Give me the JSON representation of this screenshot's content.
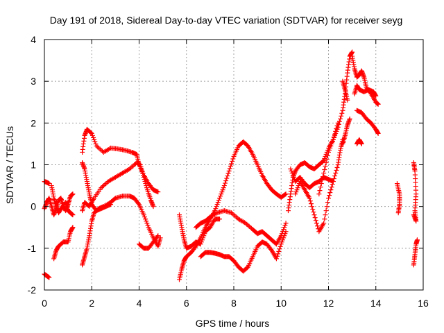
{
  "chart_data": {
    "type": "scatter",
    "title": "Day 191 of 2018, Sidereal Day-to-day VTEC variation (SDTVAR) for receiver seyg",
    "xlabel": "GPS time / hours",
    "ylabel": "SDTVAR / TECUs",
    "xlim": [
      0,
      16
    ],
    "ylim": [
      -2,
      4
    ],
    "xticks": [
      "0",
      "2",
      "4",
      "6",
      "8",
      "10",
      "12",
      "14",
      "16"
    ],
    "yticks": [
      "-2",
      "-1",
      "0",
      "1",
      "2",
      "3",
      "4"
    ],
    "grid": true,
    "marker": "+",
    "color": "#ff0000",
    "series": [
      {
        "tracks": [
          [
            [
              0.0,
              0.6
            ],
            [
              0.1,
              0.58
            ],
            [
              0.2,
              0.55
            ]
          ],
          [
            [
              0.0,
              -1.62
            ],
            [
              0.1,
              -1.66
            ],
            [
              0.2,
              -1.7
            ]
          ],
          [
            [
              0.0,
              -0.05
            ],
            [
              0.1,
              0.1
            ],
            [
              0.2,
              0.2
            ],
            [
              0.3,
              0.0
            ],
            [
              0.4,
              -0.2
            ],
            [
              0.5,
              -0.05
            ],
            [
              0.6,
              0.15
            ],
            [
              0.7,
              0.2
            ],
            [
              0.8,
              0.0
            ],
            [
              0.9,
              -0.1
            ],
            [
              1.0,
              0.05
            ],
            [
              1.1,
              0.25
            ],
            [
              1.2,
              0.3
            ]
          ],
          [
            [
              0.4,
              -1.25
            ],
            [
              0.5,
              -1.05
            ],
            [
              0.6,
              -0.95
            ],
            [
              0.8,
              -0.85
            ],
            [
              1.0,
              -0.85
            ],
            [
              1.1,
              -0.6
            ],
            [
              1.2,
              -0.5
            ]
          ],
          [
            [
              0.3,
              0.5
            ],
            [
              0.4,
              0.2
            ],
            [
              0.5,
              0.0
            ],
            [
              0.6,
              -0.15
            ],
            [
              0.7,
              -0.05
            ],
            [
              0.9,
              0.1
            ],
            [
              1.0,
              -0.1
            ],
            [
              1.1,
              -0.15
            ],
            [
              1.2,
              -0.2
            ]
          ],
          [
            [
              1.6,
              -1.4
            ],
            [
              1.7,
              -1.2
            ],
            [
              1.8,
              -1.0
            ],
            [
              1.9,
              -0.7
            ],
            [
              2.0,
              -0.35
            ],
            [
              2.1,
              -0.15
            ],
            [
              2.3,
              -0.05
            ],
            [
              2.5,
              0.0
            ],
            [
              2.8,
              0.1
            ],
            [
              3.0,
              0.2
            ],
            [
              3.3,
              0.25
            ],
            [
              3.6,
              0.25
            ],
            [
              3.8,
              0.2
            ],
            [
              4.0,
              0.05
            ],
            [
              4.2,
              -0.2
            ],
            [
              4.4,
              -0.5
            ],
            [
              4.6,
              -0.75
            ],
            [
              4.8,
              -0.95
            ],
            [
              4.9,
              -0.75
            ]
          ],
          [
            [
              1.6,
              -0.1
            ],
            [
              1.7,
              0.1
            ],
            [
              1.9,
              0.0
            ],
            [
              2.1,
              0.2
            ],
            [
              2.4,
              0.45
            ],
            [
              2.7,
              0.6
            ],
            [
              3.0,
              0.7
            ],
            [
              3.3,
              0.8
            ],
            [
              3.6,
              0.9
            ],
            [
              3.9,
              1.05
            ],
            [
              4.05,
              1.0
            ],
            [
              4.2,
              0.7
            ],
            [
              4.35,
              0.4
            ],
            [
              4.5,
              0.15
            ],
            [
              4.6,
              0.0
            ]
          ],
          [
            [
              1.6,
              1.3
            ],
            [
              1.7,
              1.7
            ],
            [
              1.8,
              1.85
            ],
            [
              2.0,
              1.75
            ],
            [
              2.2,
              1.45
            ],
            [
              2.5,
              1.3
            ],
            [
              2.8,
              1.4
            ],
            [
              3.1,
              1.38
            ],
            [
              3.4,
              1.35
            ],
            [
              3.7,
              1.3
            ],
            [
              3.9,
              1.25
            ],
            [
              4.0,
              1.0
            ],
            [
              4.2,
              0.75
            ],
            [
              4.4,
              0.55
            ],
            [
              4.6,
              0.4
            ],
            [
              4.8,
              0.35
            ]
          ],
          [
            [
              1.6,
              1.05
            ],
            [
              1.7,
              0.9
            ],
            [
              1.8,
              0.6
            ],
            [
              1.9,
              0.3
            ],
            [
              2.0,
              0.05
            ],
            [
              2.2,
              -0.1
            ],
            [
              2.4,
              -0.05
            ],
            [
              2.6,
              0.0
            ],
            [
              2.8,
              0.05
            ]
          ],
          [
            [
              4.0,
              -0.9
            ],
            [
              4.2,
              -1.0
            ],
            [
              4.4,
              -1.0
            ],
            [
              4.6,
              -0.85
            ],
            [
              4.8,
              -0.7
            ]
          ],
          [
            [
              5.7,
              -0.2
            ],
            [
              5.8,
              -0.5
            ],
            [
              5.9,
              -0.8
            ],
            [
              6.0,
              -1.0
            ],
            [
              6.2,
              -0.95
            ],
            [
              6.4,
              -0.85
            ],
            [
              6.6,
              -0.9
            ],
            [
              6.8,
              -0.6
            ],
            [
              7.0,
              -0.5
            ],
            [
              7.2,
              -0.3
            ],
            [
              7.4,
              -0.3
            ]
          ],
          [
            [
              5.7,
              -1.75
            ],
            [
              5.8,
              -1.5
            ],
            [
              5.9,
              -1.3
            ],
            [
              6.0,
              -1.2
            ],
            [
              6.2,
              -1.1
            ],
            [
              6.4,
              -0.95
            ],
            [
              6.6,
              -0.75
            ],
            [
              6.8,
              -0.5
            ],
            [
              7.0,
              -0.3
            ],
            [
              7.2,
              -0.1
            ],
            [
              7.4,
              0.2
            ],
            [
              7.6,
              0.5
            ],
            [
              7.8,
              0.85
            ],
            [
              8.0,
              1.2
            ],
            [
              8.2,
              1.45
            ],
            [
              8.4,
              1.55
            ],
            [
              8.6,
              1.45
            ],
            [
              8.8,
              1.25
            ],
            [
              9.0,
              1.0
            ],
            [
              9.2,
              0.75
            ],
            [
              9.4,
              0.55
            ],
            [
              9.6,
              0.4
            ],
            [
              9.8,
              0.3
            ],
            [
              10.0,
              0.22
            ],
            [
              10.2,
              0.3
            ]
          ],
          [
            [
              6.4,
              -0.5
            ],
            [
              6.6,
              -0.4
            ],
            [
              6.8,
              -0.35
            ],
            [
              7.0,
              -0.25
            ],
            [
              7.3,
              -0.15
            ],
            [
              7.6,
              -0.1
            ],
            [
              7.9,
              -0.15
            ],
            [
              8.2,
              -0.3
            ],
            [
              8.5,
              -0.4
            ],
            [
              8.8,
              -0.55
            ],
            [
              9.0,
              -0.65
            ],
            [
              9.2,
              -0.6
            ],
            [
              9.4,
              -0.7
            ],
            [
              9.6,
              -0.8
            ],
            [
              9.8,
              -0.9
            ],
            [
              10.0,
              -0.7
            ],
            [
              10.2,
              -0.4
            ]
          ],
          [
            [
              6.6,
              -1.2
            ],
            [
              6.8,
              -1.1
            ],
            [
              7.0,
              -1.1
            ],
            [
              7.2,
              -1.12
            ],
            [
              7.4,
              -1.15
            ],
            [
              7.6,
              -1.2
            ],
            [
              7.8,
              -1.2
            ],
            [
              8.0,
              -1.3
            ],
            [
              8.2,
              -1.45
            ],
            [
              8.4,
              -1.55
            ],
            [
              8.6,
              -1.45
            ],
            [
              8.8,
              -1.2
            ],
            [
              9.0,
              -0.95
            ],
            [
              9.2,
              -0.85
            ],
            [
              9.4,
              -0.9
            ],
            [
              9.6,
              -1.05
            ],
            [
              9.8,
              -1.25
            ],
            [
              10.0,
              -0.9
            ],
            [
              10.2,
              -0.6
            ]
          ],
          [
            [
              10.3,
              -0.1
            ],
            [
              10.4,
              0.3
            ],
            [
              10.5,
              0.7
            ],
            [
              10.6,
              0.85
            ],
            [
              10.8,
              1.0
            ],
            [
              11.0,
              1.05
            ],
            [
              11.2,
              0.95
            ],
            [
              11.4,
              0.9
            ],
            [
              11.6,
              1.0
            ],
            [
              11.8,
              1.1
            ],
            [
              12.0,
              1.4
            ],
            [
              12.2,
              1.6
            ],
            [
              12.4,
              1.9
            ],
            [
              12.6,
              2.3
            ],
            [
              12.7,
              2.7
            ],
            [
              12.8,
              3.2
            ],
            [
              12.9,
              3.6
            ],
            [
              13.0,
              3.7
            ]
          ],
          [
            [
              10.4,
              0.9
            ],
            [
              10.6,
              0.6
            ],
            [
              10.8,
              0.7
            ],
            [
              11.0,
              0.55
            ],
            [
              11.2,
              0.45
            ],
            [
              11.4,
              0.55
            ],
            [
              11.6,
              0.6
            ],
            [
              11.8,
              0.7
            ],
            [
              12.0,
              0.65
            ],
            [
              12.2,
              0.6
            ]
          ],
          [
            [
              10.6,
              0.3
            ],
            [
              10.8,
              0.6
            ],
            [
              11.0,
              0.4
            ],
            [
              11.2,
              0.2
            ],
            [
              11.4,
              -0.2
            ],
            [
              11.6,
              -0.6
            ],
            [
              11.8,
              -0.4
            ],
            [
              12.0,
              0.2
            ],
            [
              12.2,
              0.6
            ],
            [
              12.4,
              1.0
            ],
            [
              12.5,
              1.35
            ],
            [
              12.6,
              1.6
            ]
          ],
          [
            [
              11.6,
              0.3
            ],
            [
              11.8,
              0.8
            ],
            [
              12.0,
              1.3
            ],
            [
              12.2,
              1.6
            ],
            [
              12.4,
              2.0
            ]
          ],
          [
            [
              12.6,
              3.0
            ],
            [
              12.7,
              2.8
            ],
            [
              12.8,
              2.55
            ]
          ],
          [
            [
              12.6,
              1.5
            ],
            [
              12.7,
              1.7
            ],
            [
              12.8,
              1.95
            ],
            [
              12.9,
              2.1
            ]
          ],
          [
            [
              13.0,
              3.6
            ],
            [
              13.1,
              3.3
            ],
            [
              13.2,
              3.1
            ],
            [
              13.3,
              3.15
            ],
            [
              13.4,
              3.25
            ],
            [
              13.5,
              3.1
            ],
            [
              13.6,
              2.85
            ],
            [
              13.8,
              2.7
            ],
            [
              14.0,
              2.5
            ],
            [
              14.1,
              2.45
            ]
          ],
          [
            [
              13.1,
              2.7
            ],
            [
              13.2,
              2.9
            ],
            [
              13.3,
              2.8
            ],
            [
              13.5,
              2.75
            ],
            [
              13.7,
              2.8
            ],
            [
              13.9,
              2.75
            ],
            [
              14.0,
              2.65
            ]
          ],
          [
            [
              13.2,
              2.3
            ],
            [
              13.4,
              2.25
            ],
            [
              13.6,
              2.1
            ],
            [
              13.8,
              2.0
            ],
            [
              14.0,
              1.85
            ],
            [
              14.1,
              1.75
            ]
          ],
          [
            [
              13.2,
              1.5
            ],
            [
              13.3,
              1.6
            ],
            [
              13.4,
              1.5
            ]
          ],
          [
            [
              14.9,
              0.55
            ],
            [
              15.0,
              0.3
            ],
            [
              15.0,
              0.05
            ],
            [
              14.95,
              -0.15
            ]
          ],
          [
            [
              15.6,
              1.05
            ],
            [
              15.65,
              0.85
            ],
            [
              15.7,
              0.3
            ],
            [
              15.65,
              -0.1
            ],
            [
              15.7,
              -0.35
            ],
            [
              15.6,
              -0.2
            ]
          ],
          [
            [
              15.6,
              -1.4
            ],
            [
              15.65,
              -1.15
            ],
            [
              15.7,
              -0.9
            ],
            [
              15.75,
              -0.8
            ]
          ]
        ]
      }
    ]
  }
}
